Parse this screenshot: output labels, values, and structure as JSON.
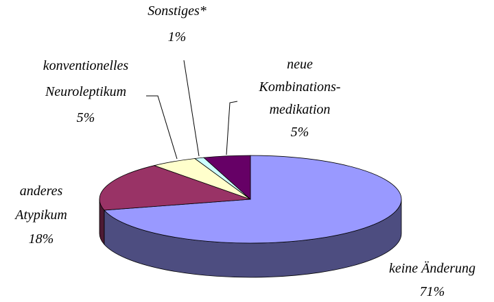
{
  "chart_data": {
    "type": "pie3d",
    "categories": [
      "keine Änderung",
      "anderes\nAtypikum",
      "konventionelles\nNeuroleptikum",
      "Sonstiges*",
      "neue\nKombinations-\nmedikation"
    ],
    "values": [
      71,
      18,
      5,
      1,
      5
    ],
    "value_labels": [
      "71%",
      "18%",
      "5%",
      "1%",
      "5%"
    ],
    "colors": [
      "#9999ff",
      "#993366",
      "#ffffcc",
      "#ccffff",
      "#660066"
    ]
  }
}
